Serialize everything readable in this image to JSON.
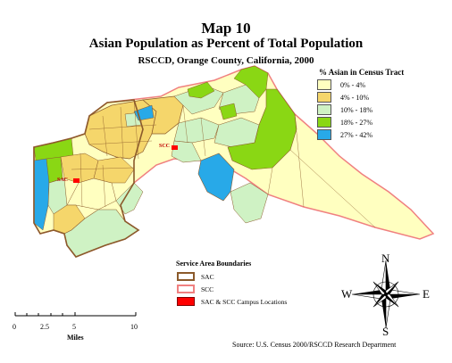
{
  "title": {
    "line1": "Map 10",
    "line2": "Asian Population as Percent of Total Population",
    "line3": "RSCCD, Orange County, California, 2000"
  },
  "legend": {
    "title": "% Asian in Census Tract",
    "items": [
      {
        "label": "0% - 4%",
        "color": "#FFFFC0"
      },
      {
        "label": "4% - 10%",
        "color": "#F5D66B"
      },
      {
        "label": "10% - 18%",
        "color": "#CFF2C4"
      },
      {
        "label": "18% - 27%",
        "color": "#8AD714"
      },
      {
        "label": "27% - 42%",
        "color": "#28A9E8"
      }
    ]
  },
  "service_area": {
    "title": "Service Area Boundaries",
    "items": [
      {
        "label": "SAC",
        "style": "brown-outline",
        "color": "#8B5A2B"
      },
      {
        "label": "SCC",
        "style": "pink-outline",
        "color": "#F08080"
      },
      {
        "label": "SAC & SCC Campus Locations",
        "style": "red-fill",
        "color": "#FF0000"
      }
    ]
  },
  "campuses": [
    {
      "label": "SAC"
    },
    {
      "label": "SCC"
    }
  ],
  "scale_bar": {
    "ticks": [
      "0",
      "2.5",
      "5",
      "10"
    ],
    "unit": "Miles"
  },
  "compass": {
    "n": "N",
    "s": "S",
    "e": "E",
    "w": "W"
  },
  "source": "Source: U.S. Census 2000/RSCCD Research Department"
}
